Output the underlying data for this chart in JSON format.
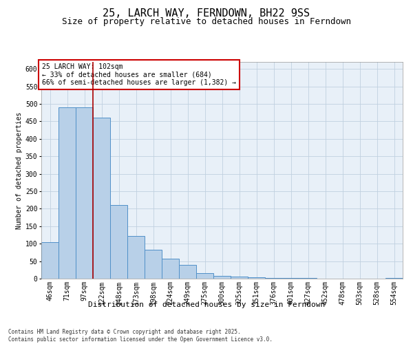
{
  "title": "25, LARCH WAY, FERNDOWN, BH22 9SS",
  "subtitle": "Size of property relative to detached houses in Ferndown",
  "xlabel": "Distribution of detached houses by size in Ferndown",
  "ylabel": "Number of detached properties",
  "footnote": "Contains HM Land Registry data © Crown copyright and database right 2025.\nContains public sector information licensed under the Open Government Licence v3.0.",
  "bin_labels": [
    "46sqm",
    "71sqm",
    "97sqm",
    "122sqm",
    "148sqm",
    "173sqm",
    "198sqm",
    "224sqm",
    "249sqm",
    "275sqm",
    "300sqm",
    "325sqm",
    "351sqm",
    "376sqm",
    "401sqm",
    "427sqm",
    "452sqm",
    "478sqm",
    "503sqm",
    "528sqm",
    "554sqm"
  ],
  "bar_values": [
    105,
    490,
    490,
    460,
    210,
    122,
    83,
    57,
    40,
    15,
    8,
    5,
    3,
    2,
    1,
    1,
    0,
    0,
    0,
    0,
    1
  ],
  "bar_color": "#b8d0e8",
  "bar_edge_color": "#5090c8",
  "grid_color": "#c0d0e0",
  "background_color": "#e8f0f8",
  "ylim": [
    0,
    620
  ],
  "yticks": [
    0,
    50,
    100,
    150,
    200,
    250,
    300,
    350,
    400,
    450,
    500,
    550,
    600
  ],
  "property_label": "25 LARCH WAY: 102sqm",
  "annotation_line1": "← 33% of detached houses are smaller (684)",
  "annotation_line2": "66% of semi-detached houses are larger (1,382) →",
  "vline_color": "#aa0000",
  "vline_x_bin": 2.5,
  "annotation_box_color": "#ffffff",
  "annotation_box_edge": "#cc0000",
  "title_fontsize": 11,
  "subtitle_fontsize": 9,
  "xlabel_fontsize": 8,
  "ylabel_fontsize": 7,
  "tick_fontsize": 7,
  "annotation_fontsize": 7,
  "footnote_fontsize": 5.5
}
